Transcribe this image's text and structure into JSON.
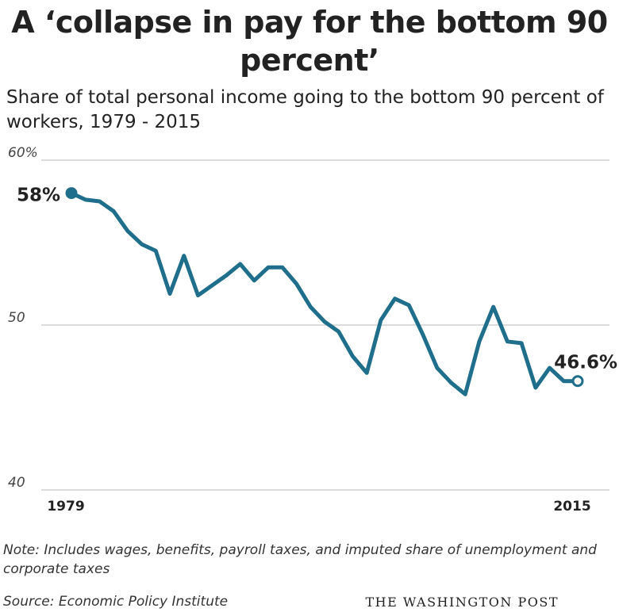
{
  "title": "A ‘collapse in pay for the bottom 90 percent’",
  "subtitle": "Share of total personal income going to the bottom 90 percent of workers, 1979 - 2015",
  "note": "Note: Includes wages, benefits, payroll taxes, and imputed share of unemployment and corporate taxes",
  "source": "Source: Economic Policy Institute",
  "credit": "THE WASHINGTON POST",
  "colors": {
    "line": "#1f6e8c",
    "grid": "#c8c8c8",
    "text": "#222222"
  },
  "chart_data": {
    "type": "line",
    "title": "A ‘collapse in pay for the bottom 90 percent’",
    "subtitle": "Share of total personal income going to the bottom 90 percent of workers, 1979 - 2015",
    "xlabel": "",
    "ylabel": "",
    "xlim": [
      1979,
      2015
    ],
    "ylim": [
      40,
      60
    ],
    "grid": true,
    "yticks": [
      {
        "value": 60,
        "label": "60%"
      },
      {
        "value": 50,
        "label": "50"
      },
      {
        "value": 40,
        "label": "40"
      }
    ],
    "xticks": [
      {
        "value": 1979,
        "label": "1979"
      },
      {
        "value": 2015,
        "label": "2015"
      }
    ],
    "x": [
      1979,
      1980,
      1981,
      1982,
      1983,
      1984,
      1985,
      1986,
      1987,
      1988,
      1989,
      1990,
      1991,
      1992,
      1993,
      1994,
      1995,
      1996,
      1997,
      1998,
      1999,
      2000,
      2001,
      2002,
      2003,
      2004,
      2005,
      2006,
      2007,
      2008,
      2009,
      2010,
      2011,
      2012,
      2013,
      2014,
      2015
    ],
    "series": [
      {
        "values": [
          58.0,
          57.6,
          57.5,
          56.9,
          55.7,
          54.9,
          54.5,
          51.9,
          54.2,
          51.8,
          52.4,
          53.0,
          53.7,
          52.7,
          53.5,
          53.5,
          52.5,
          51.1,
          50.2,
          49.6,
          48.1,
          47.1,
          50.3,
          51.6,
          51.2,
          49.4,
          47.4,
          46.5,
          45.8,
          49.0,
          51.1,
          49.0,
          48.9,
          46.2,
          47.4,
          46.6,
          46.6
        ]
      }
    ],
    "annotations": [
      {
        "x": 1979,
        "y": 58.0,
        "label": "58%"
      },
      {
        "x": 2015,
        "y": 46.6,
        "label": "46.6%"
      }
    ]
  }
}
